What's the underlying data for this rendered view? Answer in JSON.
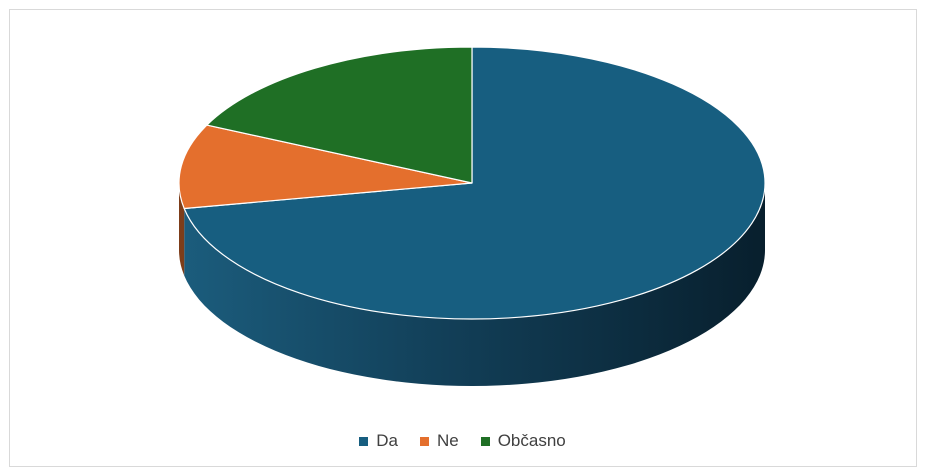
{
  "chart_data": {
    "type": "pie",
    "style": "3d",
    "title": "",
    "categories": [
      "Da",
      "Ne",
      "Občasno"
    ],
    "values": [
      72,
      10,
      18
    ],
    "unit": "%",
    "colors": [
      "#175e80",
      "#e46f2d",
      "#1f6f25"
    ],
    "legend": "bottom",
    "data_labels": false
  }
}
